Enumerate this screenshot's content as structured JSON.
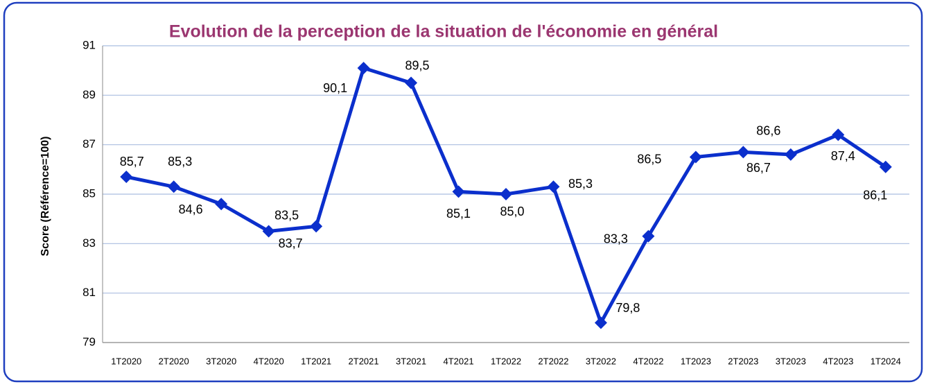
{
  "chart_data": {
    "type": "line",
    "title": "Evolution de la perception de la situation de l'économie en général",
    "y_label": "Score (Référence=100)",
    "categories": [
      "1T2020",
      "2T2020",
      "3T2020",
      "4T2020",
      "1T2021",
      "2T2021",
      "3T2021",
      "4T2021",
      "1T2022",
      "2T2022",
      "3T2022",
      "4T2022",
      "1T2023",
      "2T2023",
      "3T2023",
      "4T2023",
      "1T2024"
    ],
    "series": [
      {
        "name": "Score",
        "color": "#0b2fcc",
        "values": [
          85.7,
          85.3,
          84.6,
          83.5,
          83.7,
          90.1,
          89.5,
          85.1,
          85.0,
          85.3,
          79.8,
          83.3,
          86.5,
          86.7,
          86.6,
          87.4,
          86.1
        ],
        "value_labels": [
          "85,7",
          "85,3",
          "84,6",
          "83,5",
          "83,7",
          "90,1",
          "89,5",
          "85,1",
          "85,0",
          "85,3",
          "79,8",
          "83,3",
          "86,5",
          "86,7",
          "86,6",
          "87,4",
          "86,1"
        ]
      }
    ],
    "ylim": [
      79,
      91
    ],
    "yticks": [
      79,
      81,
      83,
      85,
      87,
      89,
      91
    ],
    "grid": true
  }
}
